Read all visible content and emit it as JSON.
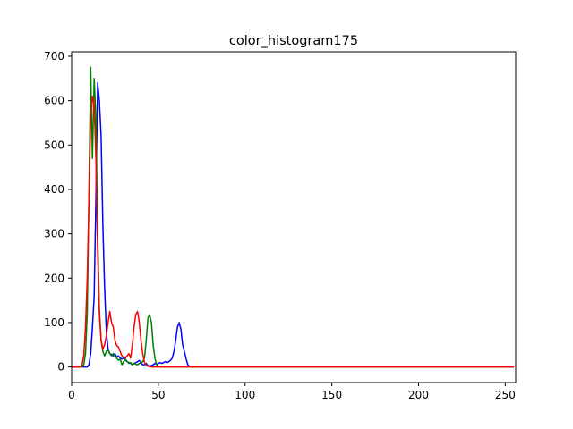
{
  "chart_data": {
    "type": "line",
    "title": "color_histogram175",
    "xlabel": "",
    "ylabel": "",
    "xlim": [
      0,
      256
    ],
    "ylim": [
      -35,
      710
    ],
    "xticks": [
      "0",
      "50",
      "100",
      "150",
      "200",
      "250"
    ],
    "yticks": [
      "0",
      "100",
      "200",
      "300",
      "400",
      "500",
      "600",
      "700"
    ],
    "grid": false,
    "legend": "none",
    "series": [
      {
        "color": "#0000ff",
        "points": [
          [
            0,
            0
          ],
          [
            6,
            0
          ],
          [
            9,
            0
          ],
          [
            10,
            5
          ],
          [
            11,
            30
          ],
          [
            12,
            90
          ],
          [
            13,
            160
          ],
          [
            14,
            380
          ],
          [
            15,
            640
          ],
          [
            16,
            600
          ],
          [
            17,
            520
          ],
          [
            18,
            320
          ],
          [
            19,
            180
          ],
          [
            20,
            80
          ],
          [
            21,
            40
          ],
          [
            22,
            30
          ],
          [
            23,
            28
          ],
          [
            24,
            25
          ],
          [
            25,
            30
          ],
          [
            26,
            22
          ],
          [
            27,
            25
          ],
          [
            28,
            20
          ],
          [
            29,
            18
          ],
          [
            30,
            20
          ],
          [
            31,
            15
          ],
          [
            32,
            12
          ],
          [
            33,
            10
          ],
          [
            34,
            8
          ],
          [
            35,
            5
          ],
          [
            36,
            8
          ],
          [
            37,
            10
          ],
          [
            38,
            12
          ],
          [
            39,
            15
          ],
          [
            40,
            10
          ],
          [
            41,
            5
          ],
          [
            42,
            5
          ],
          [
            43,
            8
          ],
          [
            44,
            3
          ],
          [
            45,
            2
          ],
          [
            46,
            3
          ],
          [
            47,
            5
          ],
          [
            48,
            8
          ],
          [
            49,
            6
          ],
          [
            50,
            8
          ],
          [
            51,
            10
          ],
          [
            52,
            8
          ],
          [
            53,
            10
          ],
          [
            54,
            12
          ],
          [
            55,
            10
          ],
          [
            56,
            12
          ],
          [
            57,
            15
          ],
          [
            58,
            20
          ],
          [
            59,
            35
          ],
          [
            60,
            60
          ],
          [
            61,
            90
          ],
          [
            62,
            100
          ],
          [
            63,
            85
          ],
          [
            64,
            50
          ],
          [
            65,
            35
          ],
          [
            66,
            18
          ],
          [
            67,
            5
          ],
          [
            68,
            0
          ],
          [
            70,
            0
          ],
          [
            100,
            0
          ],
          [
            150,
            0
          ],
          [
            200,
            0
          ],
          [
            255,
            0
          ]
        ]
      },
      {
        "color": "#008000",
        "points": [
          [
            0,
            0
          ],
          [
            6,
            0
          ],
          [
            7,
            5
          ],
          [
            8,
            30
          ],
          [
            9,
            120
          ],
          [
            10,
            400
          ],
          [
            11,
            675
          ],
          [
            12,
            470
          ],
          [
            13,
            650
          ],
          [
            14,
            560
          ],
          [
            15,
            300
          ],
          [
            16,
            130
          ],
          [
            17,
            60
          ],
          [
            18,
            35
          ],
          [
            19,
            25
          ],
          [
            20,
            35
          ],
          [
            21,
            38
          ],
          [
            22,
            30
          ],
          [
            23,
            25
          ],
          [
            24,
            30
          ],
          [
            25,
            25
          ],
          [
            26,
            20
          ],
          [
            27,
            15
          ],
          [
            28,
            18
          ],
          [
            29,
            5
          ],
          [
            30,
            12
          ],
          [
            31,
            18
          ],
          [
            32,
            12
          ],
          [
            33,
            8
          ],
          [
            34,
            10
          ],
          [
            35,
            5
          ],
          [
            36,
            8
          ],
          [
            37,
            6
          ],
          [
            38,
            5
          ],
          [
            39,
            8
          ],
          [
            40,
            10
          ],
          [
            41,
            12
          ],
          [
            42,
            20
          ],
          [
            43,
            60
          ],
          [
            44,
            110
          ],
          [
            45,
            118
          ],
          [
            46,
            100
          ],
          [
            47,
            50
          ],
          [
            48,
            20
          ],
          [
            49,
            5
          ],
          [
            50,
            0
          ],
          [
            60,
            0
          ],
          [
            100,
            0
          ],
          [
            150,
            0
          ],
          [
            200,
            0
          ],
          [
            255,
            0
          ]
        ]
      },
      {
        "color": "#ff0000",
        "points": [
          [
            0,
            0
          ],
          [
            5,
            0
          ],
          [
            6,
            5
          ],
          [
            7,
            25
          ],
          [
            8,
            90
          ],
          [
            9,
            200
          ],
          [
            10,
            380
          ],
          [
            11,
            560
          ],
          [
            12,
            610
          ],
          [
            13,
            590
          ],
          [
            14,
            470
          ],
          [
            15,
            260
          ],
          [
            16,
            120
          ],
          [
            17,
            60
          ],
          [
            18,
            40
          ],
          [
            19,
            50
          ],
          [
            20,
            70
          ],
          [
            21,
            100
          ],
          [
            22,
            125
          ],
          [
            23,
            100
          ],
          [
            24,
            90
          ],
          [
            25,
            60
          ],
          [
            26,
            48
          ],
          [
            27,
            45
          ],
          [
            28,
            35
          ],
          [
            29,
            25
          ],
          [
            30,
            22
          ],
          [
            31,
            20
          ],
          [
            32,
            25
          ],
          [
            33,
            30
          ],
          [
            34,
            20
          ],
          [
            35,
            50
          ],
          [
            36,
            90
          ],
          [
            37,
            118
          ],
          [
            38,
            125
          ],
          [
            39,
            100
          ],
          [
            40,
            60
          ],
          [
            41,
            30
          ],
          [
            42,
            10
          ],
          [
            43,
            5
          ],
          [
            44,
            2
          ],
          [
            45,
            0
          ],
          [
            60,
            0
          ],
          [
            100,
            0
          ],
          [
            150,
            0
          ],
          [
            200,
            0
          ],
          [
            255,
            0
          ]
        ]
      }
    ]
  }
}
